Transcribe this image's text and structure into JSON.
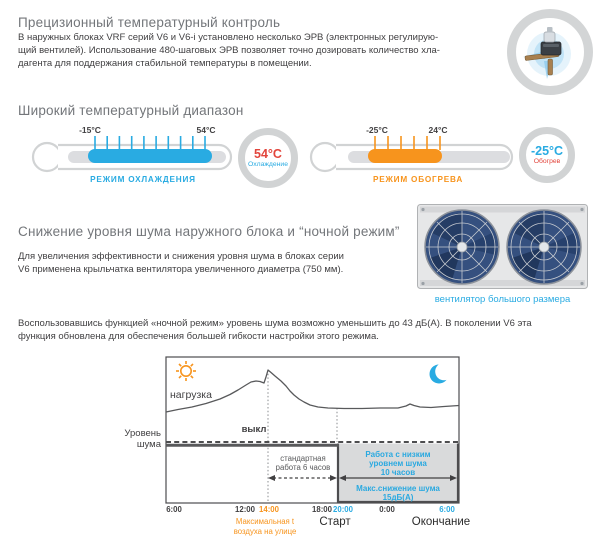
{
  "colors": {
    "accent_blue": "#29abe2",
    "accent_orange": "#f7941d",
    "accent_red": "#e2453c",
    "heading_gray": "#73767a",
    "text_dark": "#414042",
    "ring_gray": "#d1d3d4",
    "chart_line_gray": "#58595b",
    "night_box_fill": "#d9dadb"
  },
  "section_precision": {
    "title": "Прецизионный температурный контроль",
    "lines": [
      "В наружных блоках VRF серий V6 и V6-i установлено несколько ЭРВ (электронных регулирую-",
      "щий вентилей). Использование 480-шаговых ЭРВ позволяет точно дозировать количество хла-",
      "дагента для поддержания стабильной температуры в помещении."
    ]
  },
  "section_range": {
    "title": "Широкий температурный диапазон",
    "cooling": {
      "min_label": "-15°C",
      "max_label": "54°C",
      "mode_label": "РЕЖИМ ОХЛАЖДЕНИЯ",
      "badge_value": "54°C",
      "badge_caption": "Охлаждение"
    },
    "heating": {
      "min_label": "-25°C",
      "max_label": "24°C",
      "mode_label": "РЕЖИМ ОБОГРЕВА",
      "badge_value": "-25°C",
      "badge_caption": "Обогрев"
    }
  },
  "section_noise": {
    "title": "Снижение уровня шума наружного блока и “ночной режим”",
    "lines": [
      "Для увеличения эффективности и снижения уровня шума в блоках серии",
      "V6 применена крыльчатка вентилятора увеличенного диаметра (750 мм)."
    ],
    "fan_caption": "вентилятор большого размера"
  },
  "section_night": {
    "lines": [
      "Воспользовавшись функцией «ночной режим» уровень шума возможно уменьшить до 43 дБ(А). В поколении V6 эта",
      "функция обновлена для обеспечения большей гибкости настройки этого режима."
    ]
  },
  "chart": {
    "load_label": "нагрузка",
    "off_label": "выкл",
    "noise_axis_line1": "Уровень",
    "noise_axis_line2": "шума",
    "standard_line1": "стандартная",
    "standard_line2": "работа 6 часов",
    "quiet_line1": "Работа с низким",
    "quiet_line2": "уровнем шума",
    "quiet_line3": "10 часов",
    "reduction_line1": "Макс.снижение шума",
    "reduction_line2": "15дБ(А)",
    "x_labels": [
      "6:00",
      "12:00",
      "14:00",
      "18:00",
      "20:00",
      "0:00",
      "6:00"
    ],
    "max_temp_line1": "Максимальная t",
    "max_temp_line2": "воздуха на улице",
    "start_label": "Старт",
    "end_label": "Окончание"
  },
  "chart_data": {
    "type": "line",
    "x_ticks": [
      "6:00",
      "12:00",
      "14:00",
      "18:00",
      "20:00",
      "0:00",
      "6:00"
    ],
    "series": [
      {
        "name": "нагрузка",
        "unit": "qualitative load, peak at 14:00",
        "curve_points": [
          [
            66,
            60
          ],
          [
            78,
            57.5
          ],
          [
            92,
            55
          ],
          [
            106,
            51.5
          ],
          [
            120,
            47
          ],
          [
            130,
            42.5
          ],
          [
            138,
            38
          ],
          [
            146,
            33
          ],
          [
            151,
            30
          ],
          [
            156,
            29
          ],
          [
            160,
            29.5
          ],
          [
            164,
            31
          ],
          [
            166,
            25
          ],
          [
            168,
            18
          ],
          [
            171,
            20.5
          ],
          [
            175,
            24
          ],
          [
            181,
            29
          ],
          [
            186,
            34
          ],
          [
            190,
            39
          ],
          [
            194,
            43
          ],
          [
            199,
            47
          ],
          [
            204,
            50
          ],
          [
            210,
            53
          ],
          [
            218,
            55
          ],
          [
            228,
            56
          ],
          [
            244,
            56.5
          ],
          [
            262,
            56.5
          ],
          [
            280,
            56
          ],
          [
            298,
            56
          ],
          [
            306,
            54
          ],
          [
            310,
            52
          ],
          [
            314,
            53.5
          ],
          [
            320,
            55
          ],
          [
            331,
            55.5
          ],
          [
            344,
            54.5
          ],
          [
            359,
            53.5
          ]
        ]
      }
    ],
    "noise_regions": [
      {
        "label": "стандартная работа 6 часов",
        "from": "14:00",
        "to": "20:00"
      },
      {
        "label": "Работа с низким уровнем шума 10 часов",
        "from": "20:00",
        "to": "6:00"
      },
      {
        "label": "Макс.снижение шума 15дБ(А)",
        "from": "20:00",
        "to": "6:00"
      }
    ],
    "legend_icons": [
      "sun (day)",
      "moon (night)"
    ]
  }
}
